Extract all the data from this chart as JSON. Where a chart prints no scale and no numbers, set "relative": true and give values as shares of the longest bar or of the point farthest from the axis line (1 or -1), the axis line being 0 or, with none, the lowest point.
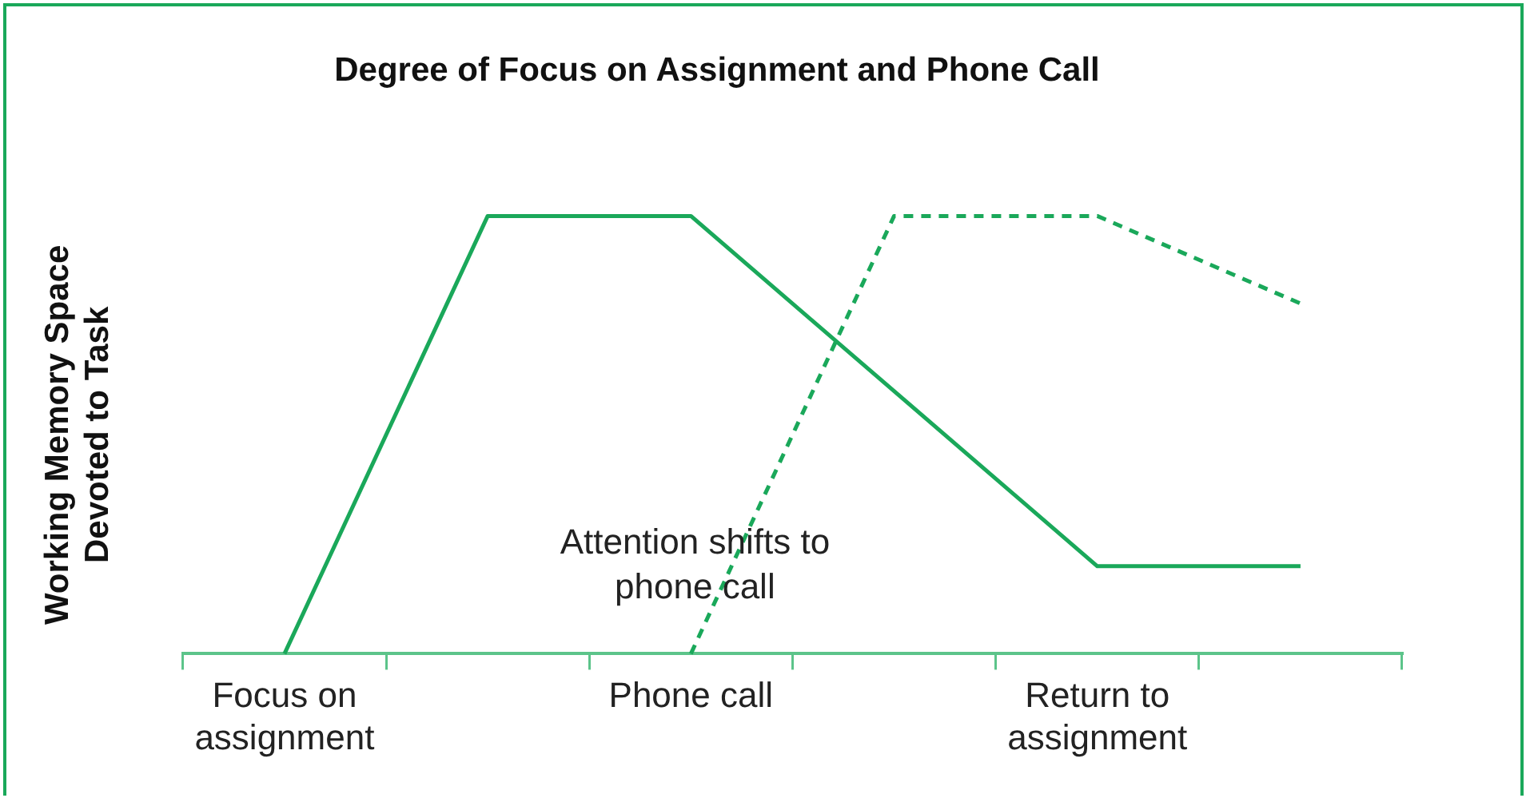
{
  "chart_data": {
    "type": "line",
    "relative": true,
    "title": "Degree of Focus on Assignment and Phone Call",
    "ylabel": "Working Memory Space Devoted to Task",
    "categories": [
      "Focus on assignment",
      null,
      "Phone call",
      null,
      "Return to assignment",
      null
    ],
    "series": [
      {
        "color": "#1aa85a",
        "line_style": "solid",
        "values": [
          0,
          1,
          1,
          0.6,
          0.2,
          0.2
        ]
      },
      {
        "color": "#1aa85a",
        "line_style": "dashed",
        "values": [
          null,
          null,
          0,
          1,
          1,
          0.8
        ]
      }
    ],
    "annotations": [
      "Attention shifts to phone call"
    ],
    "grid": false,
    "legend": false,
    "marker": "none"
  }
}
